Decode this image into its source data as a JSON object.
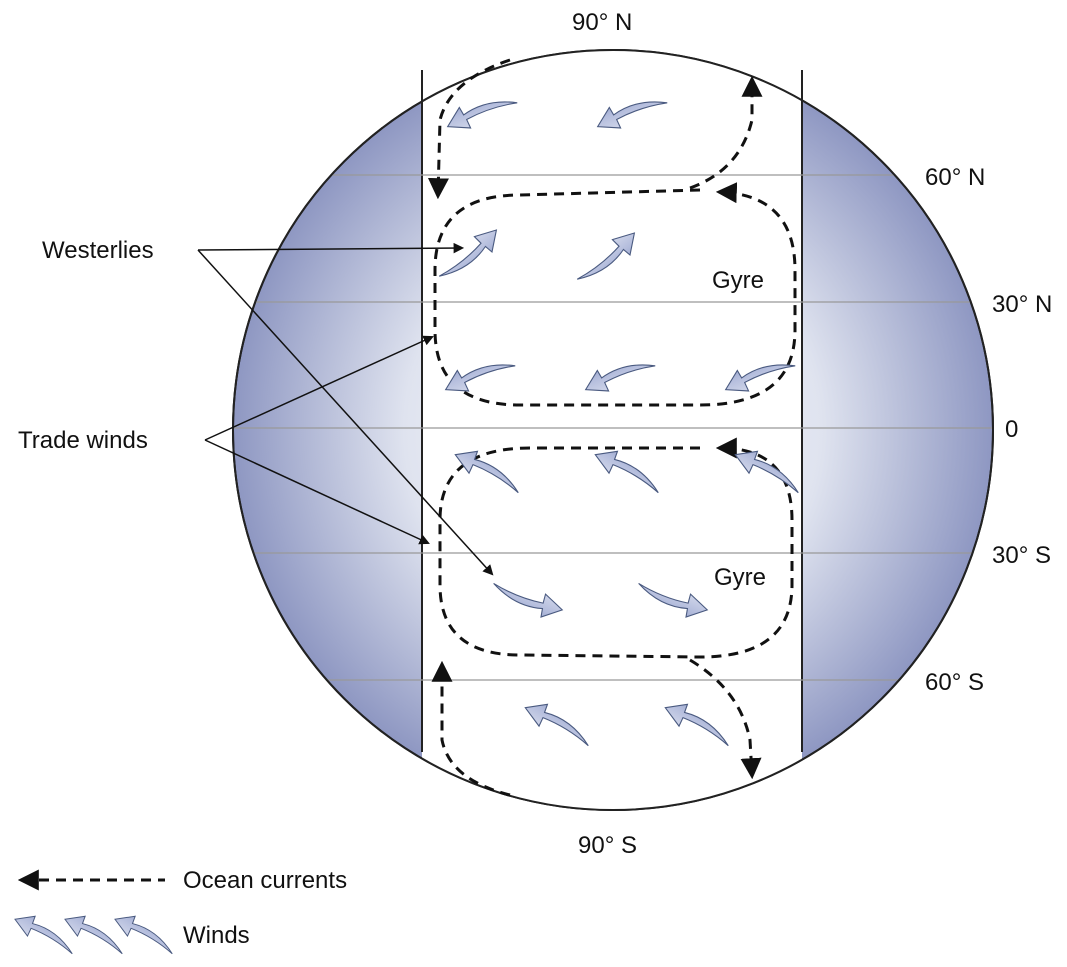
{
  "latitudes": {
    "north_pole": "90° N",
    "lat_60n": "60° N",
    "lat_30n": "30° N",
    "equator": "0",
    "lat_30s": "30° S",
    "lat_60s": "60° S",
    "south_pole": "90° S"
  },
  "labels": {
    "westerlies": "Westerlies",
    "trade_winds": "Trade winds",
    "gyre_north": "Gyre",
    "gyre_south": "Gyre"
  },
  "legend": {
    "ocean_currents": "Ocean currents",
    "winds": "Winds"
  },
  "colors": {
    "landmass": "#b6bed9",
    "globe_center": "#ffffff",
    "globe_edge": "#8e97c2",
    "wind_arrow": "#7b88b8",
    "current_line": "#111111"
  }
}
